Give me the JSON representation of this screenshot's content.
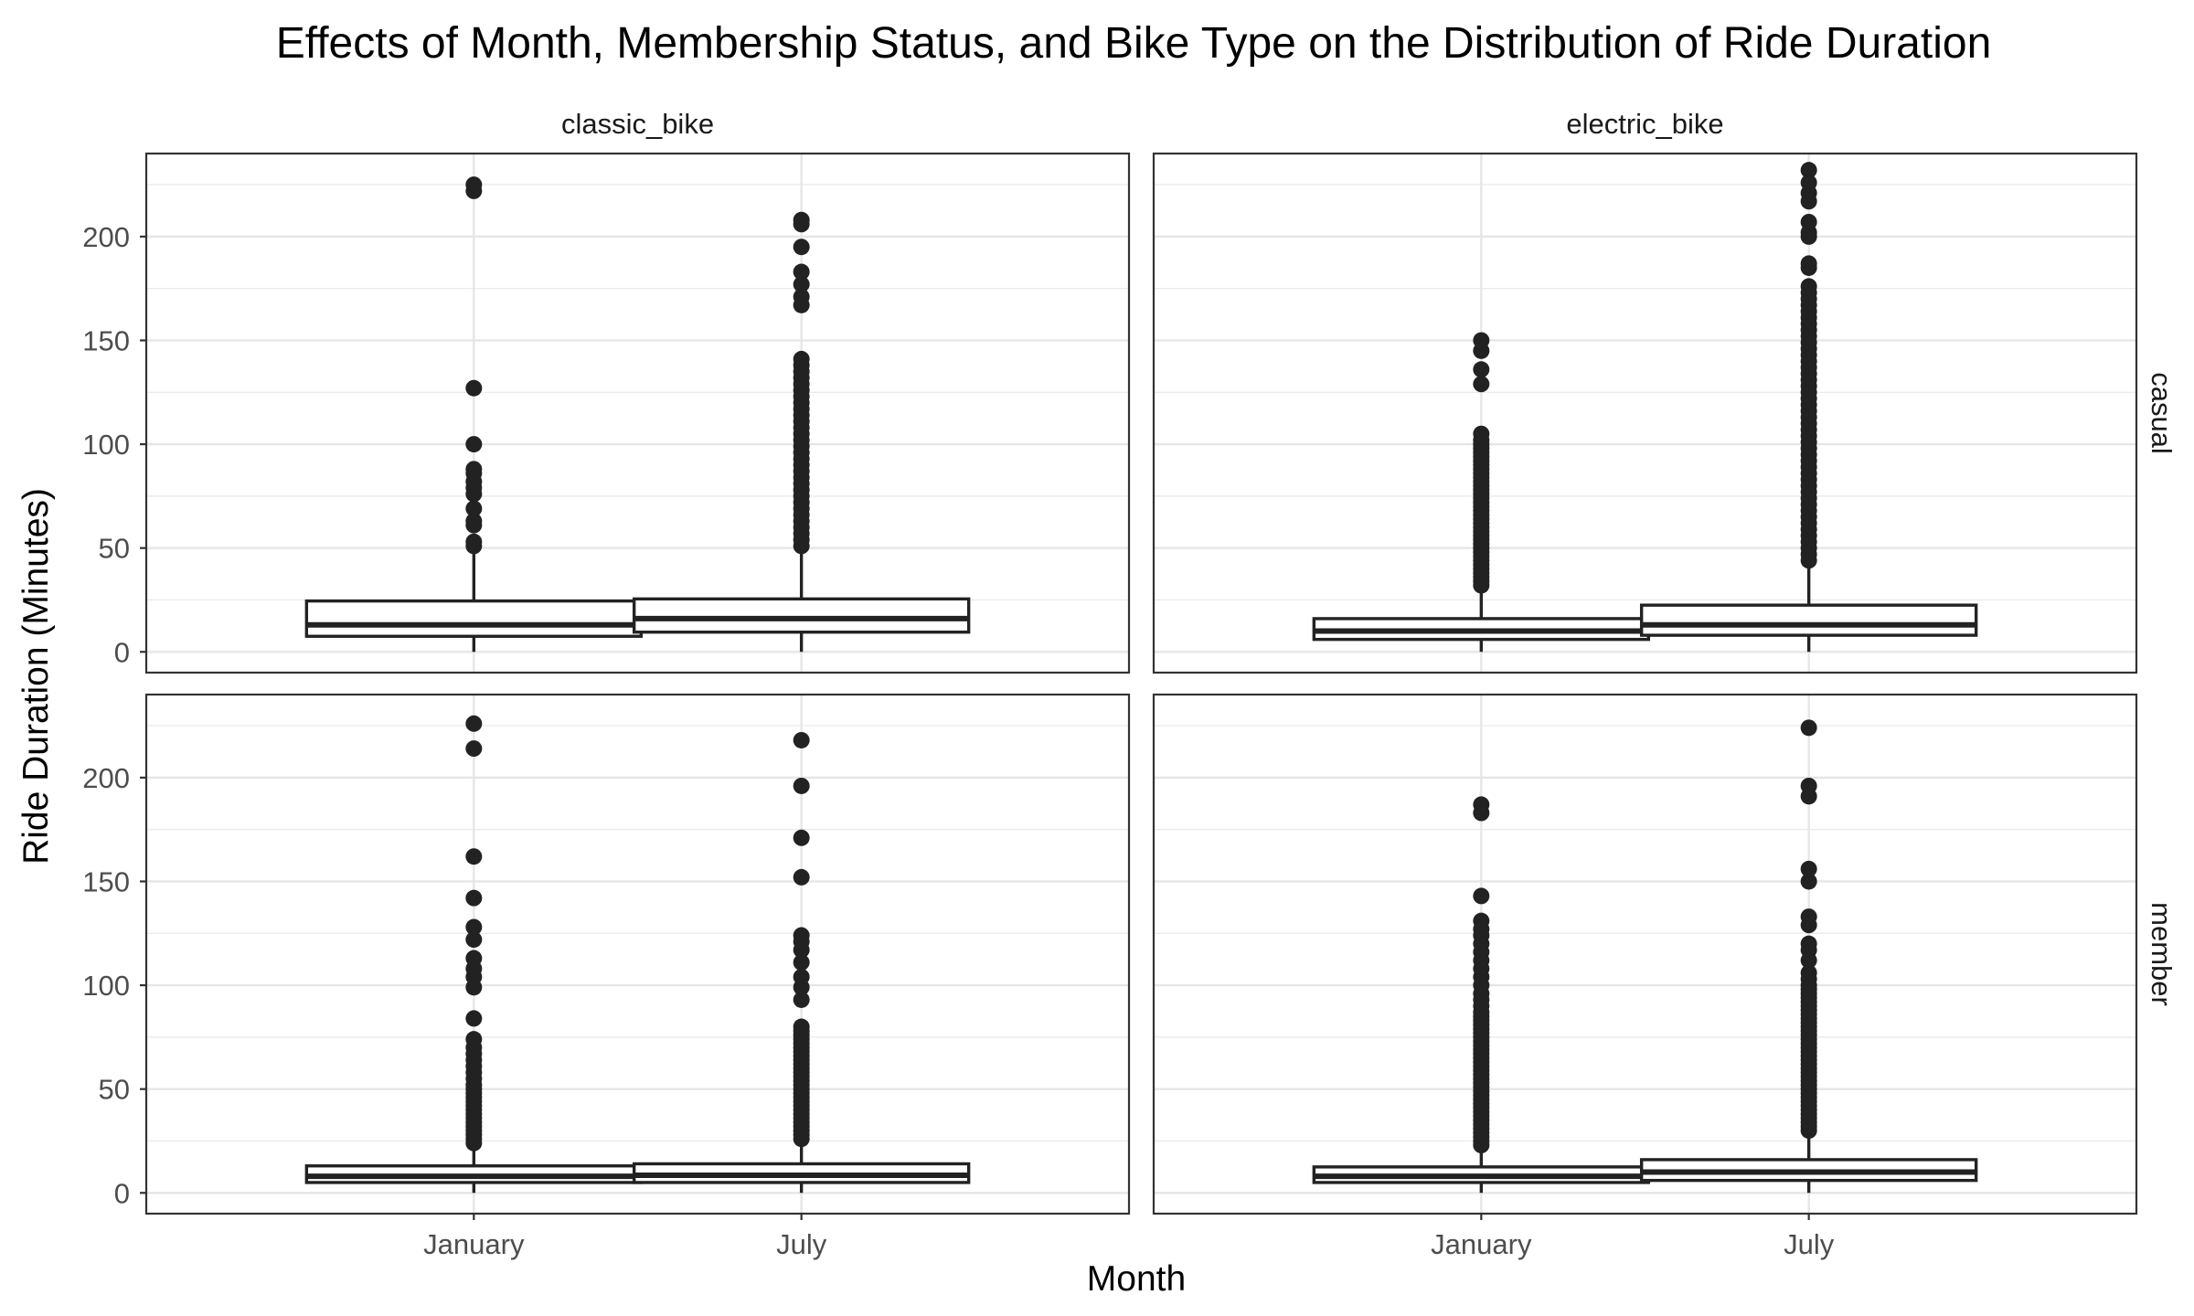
{
  "chart_data": {
    "type": "boxplot",
    "title": "Effects of Month, Membership Status, and Bike Type on the Distribution of Ride Duration",
    "xlabel": "Month",
    "ylabel": "Ride Duration (Minutes)",
    "categories": [
      "January",
      "July"
    ],
    "facet_columns": [
      "classic_bike",
      "electric_bike"
    ],
    "facet_rows": [
      "casual",
      "member"
    ],
    "yticks": [
      0,
      50,
      100,
      150,
      200
    ],
    "ylim": [
      -10,
      240
    ],
    "grid": true,
    "panels": [
      {
        "bike_type": "classic_bike",
        "member_type": "casual",
        "boxes": [
          {
            "month": "January",
            "lower_whisker": 0,
            "q1": 7.5,
            "median": 13,
            "q3": 24.5,
            "upper_whisker": 49,
            "outliers": [
              51,
              53,
              61,
              63,
              69,
              76,
              79,
              82,
              86,
              88,
              100,
              127,
              222,
              225
            ]
          },
          {
            "month": "July",
            "lower_whisker": 0,
            "q1": 9.5,
            "median": 16,
            "q3": 25.5,
            "upper_whisker": 49,
            "outliers": [
              51,
              54,
              57,
              60,
              63,
              66,
              69,
              72,
              75,
              78,
              81,
              84,
              87,
              90,
              93,
              96,
              99,
              102,
              105,
              108,
              111,
              114,
              117,
              120,
              123,
              126,
              129,
              132,
              135,
              138,
              141,
              167,
              171,
              177,
              183,
              195,
              206,
              208
            ]
          }
        ]
      },
      {
        "bike_type": "electric_bike",
        "member_type": "casual",
        "boxes": [
          {
            "month": "January",
            "lower_whisker": 0,
            "q1": 6,
            "median": 10,
            "q3": 16,
            "upper_whisker": 31,
            "outliers": [
              32,
              34,
              36,
              38,
              40,
              42,
              44,
              46,
              48,
              50,
              52,
              54,
              56,
              58,
              60,
              62,
              64,
              66,
              68,
              70,
              72,
              74,
              76,
              78,
              80,
              82,
              84,
              86,
              88,
              90,
              92,
              94,
              96,
              98,
              100,
              102,
              105,
              129,
              136,
              145,
              150
            ]
          },
          {
            "month": "July",
            "lower_whisker": 0,
            "q1": 8,
            "median": 13,
            "q3": 22.5,
            "upper_whisker": 43,
            "outliers": [
              44,
              47,
              50,
              53,
              56,
              59,
              62,
              65,
              68,
              71,
              74,
              77,
              80,
              83,
              86,
              89,
              92,
              95,
              98,
              101,
              104,
              107,
              110,
              113,
              116,
              119,
              122,
              125,
              128,
              131,
              134,
              137,
              140,
              143,
              146,
              149,
              152,
              155,
              158,
              161,
              164,
              167,
              170,
              173,
              176,
              185,
              187,
              200,
              202,
              207,
              217,
              221,
              226,
              232
            ]
          }
        ]
      },
      {
        "bike_type": "classic_bike",
        "member_type": "member",
        "boxes": [
          {
            "month": "January",
            "lower_whisker": 0,
            "q1": 5,
            "median": 8,
            "q3": 13,
            "upper_whisker": 23,
            "outliers": [
              24,
              26,
              28,
              30,
              32,
              34,
              36,
              38,
              40,
              42,
              44,
              46,
              48,
              50,
              52,
              55,
              58,
              61,
              64,
              67,
              70,
              74,
              84,
              99,
              104,
              108,
              113,
              122,
              128,
              142,
              162,
              214,
              226
            ]
          },
          {
            "month": "July",
            "lower_whisker": 0,
            "q1": 5,
            "median": 8.5,
            "q3": 14,
            "upper_whisker": 25,
            "outliers": [
              26,
              28,
              30,
              32,
              34,
              36,
              38,
              40,
              42,
              44,
              46,
              48,
              50,
              52,
              54,
              56,
              58,
              60,
              62,
              64,
              66,
              68,
              70,
              72,
              74,
              76,
              78,
              80,
              93,
              99,
              104,
              111,
              117,
              121,
              124,
              152,
              171,
              196,
              218
            ]
          }
        ]
      },
      {
        "bike_type": "electric_bike",
        "member_type": "member",
        "boxes": [
          {
            "month": "January",
            "lower_whisker": 0,
            "q1": 5,
            "median": 8,
            "q3": 12.5,
            "upper_whisker": 22,
            "outliers": [
              23,
              25,
              27,
              29,
              31,
              33,
              35,
              37,
              39,
              41,
              43,
              45,
              47,
              49,
              51,
              53,
              55,
              57,
              59,
              61,
              63,
              65,
              67,
              69,
              71,
              73,
              75,
              77,
              79,
              81,
              83,
              85,
              87,
              90,
              93,
              96,
              100,
              104,
              108,
              112,
              116,
              120,
              124,
              127,
              131,
              143,
              183,
              187
            ]
          },
          {
            "month": "July",
            "lower_whisker": 0,
            "q1": 6,
            "median": 10,
            "q3": 16,
            "upper_whisker": 28,
            "outliers": [
              30,
              32,
              34,
              36,
              38,
              40,
              42,
              44,
              46,
              48,
              50,
              52,
              54,
              56,
              58,
              60,
              62,
              64,
              66,
              68,
              70,
              72,
              74,
              76,
              78,
              80,
              82,
              84,
              86,
              88,
              90,
              92,
              94,
              96,
              98,
              100,
              103,
              106,
              112,
              117,
              120,
              129,
              133,
              150,
              156,
              191,
              196,
              224
            ]
          }
        ]
      }
    ]
  }
}
